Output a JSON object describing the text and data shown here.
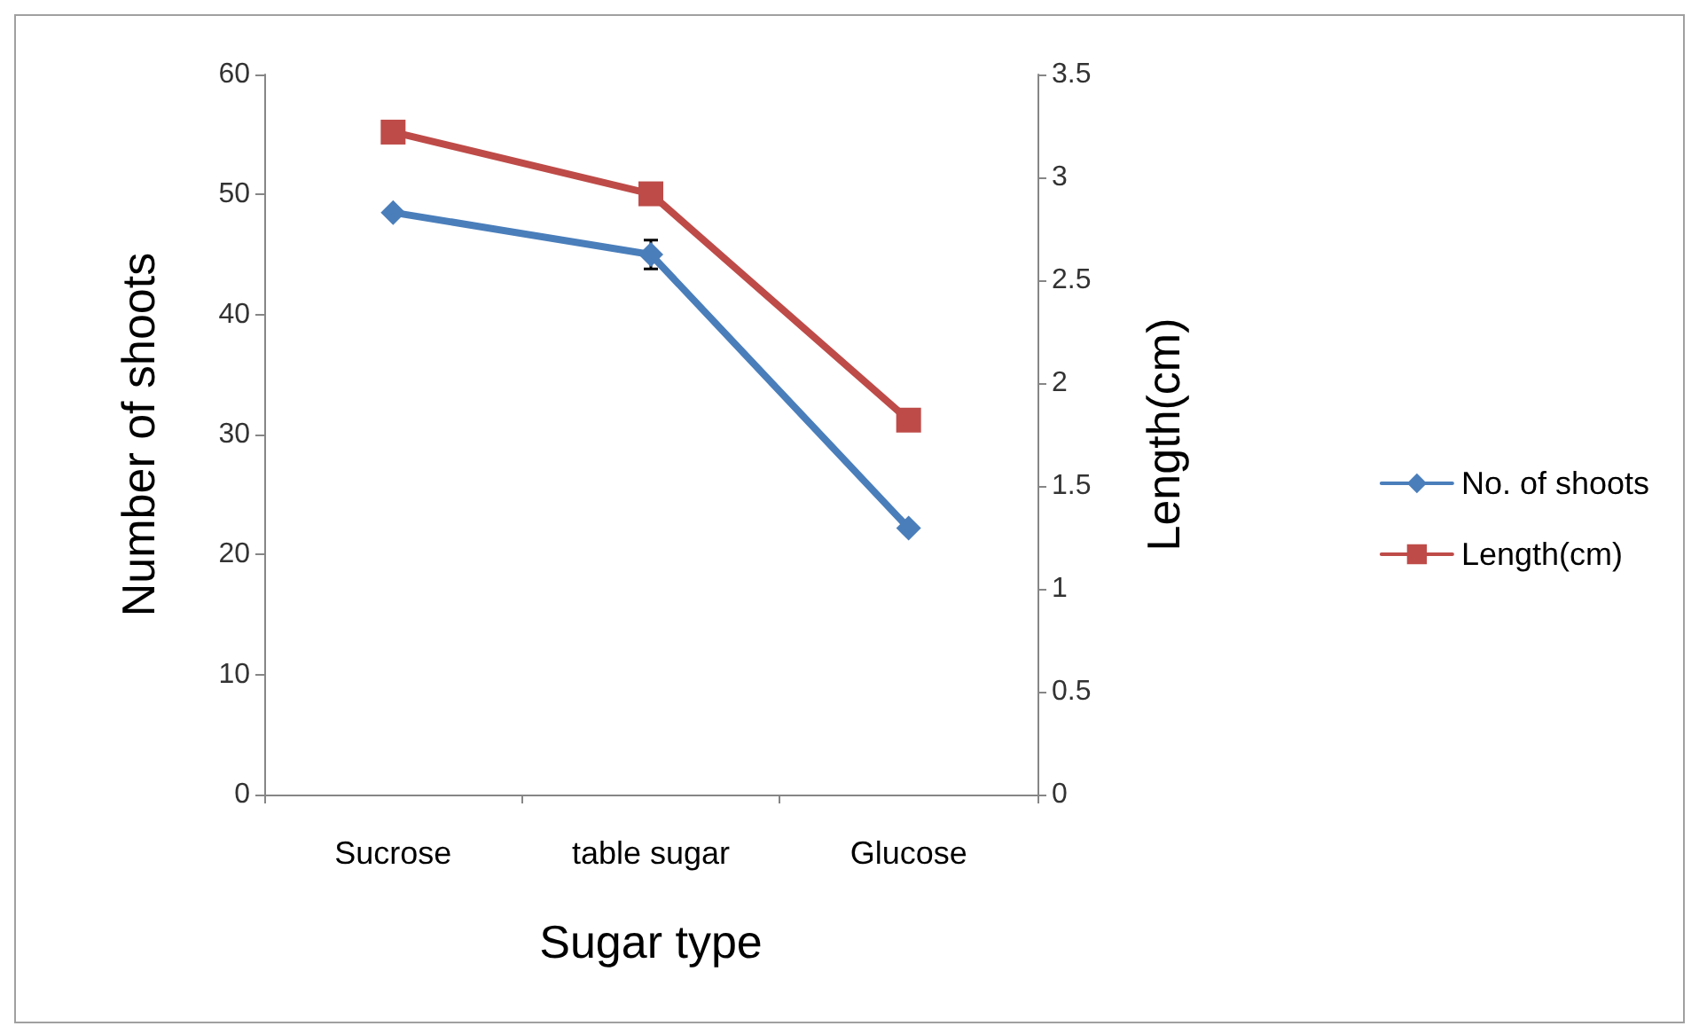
{
  "chart_data": {
    "type": "line",
    "xlabel": "Sugar type",
    "ylabel": "Number of shoots",
    "y2label": "Length(cm)",
    "categories": [
      "Sucrose",
      "table sugar",
      "Glucose"
    ],
    "series": [
      {
        "name": "No. of shoots",
        "color": "#4a7ebb",
        "marker": "diamond",
        "values": [
          48.5,
          45,
          22.2
        ],
        "errors": [
          null,
          1.2,
          null
        ]
      },
      {
        "name": "Length(cm)",
        "color": "#be4b48",
        "marker": "square",
        "axis": "y2",
        "values": [
          3.22,
          2.92,
          1.82
        ]
      }
    ],
    "ylim": [
      0,
      60
    ],
    "yticks": [
      0,
      10,
      20,
      30,
      40,
      50,
      60
    ],
    "y2lim": [
      0,
      3.5
    ],
    "y2ticks": [
      0,
      0.5,
      1,
      1.5,
      2,
      2.5,
      3,
      3.5
    ],
    "line_style": "solid",
    "grid": false,
    "legend": "right"
  }
}
